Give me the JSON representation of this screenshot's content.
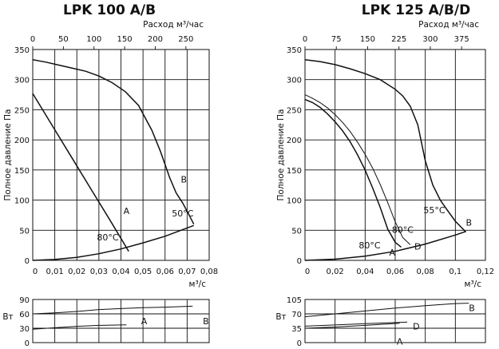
{
  "chart_data": [
    {
      "type": "line",
      "title": "LPK 100 A/B",
      "ylabel": "Полное давление Па",
      "xlabel": "м³/с",
      "x2label": "Расход м³/час",
      "xlim": [
        0,
        0.08
      ],
      "ylim": [
        0,
        350
      ],
      "x_ticks": [
        "0",
        "0,01",
        "0,02",
        "0,03",
        "0,04",
        "0,05",
        "0,06",
        "0,07",
        "0,08"
      ],
      "y_ticks": [
        "0",
        "50",
        "100",
        "150",
        "200",
        "250",
        "300",
        "350"
      ],
      "x2_ticks": [
        "0",
        "50",
        "100",
        "150",
        "200",
        "250"
      ],
      "x2_scale": 3600,
      "grid": true,
      "series": [
        {
          "name": "A",
          "x": [
            0,
            0.0088,
            0.0178,
            0.0268,
            0.0358,
            0.0435
          ],
          "y": [
            277,
            224,
            170,
            116,
            62,
            15
          ]
        },
        {
          "name": "B",
          "x": [
            0,
            0.006,
            0.012,
            0.018,
            0.024,
            0.03,
            0.036,
            0.042,
            0.048,
            0.054,
            0.058,
            0.062,
            0.065,
            0.068,
            0.0705,
            0.073
          ],
          "y": [
            333,
            329,
            324,
            319,
            314,
            306,
            295,
            280,
            257,
            216,
            180,
            138,
            112,
            95,
            78,
            60
          ]
        },
        {
          "name": "system",
          "x": [
            0,
            0.01,
            0.02,
            0.03,
            0.04,
            0.05,
            0.06,
            0.073
          ],
          "y": [
            0,
            1.5,
            5,
            11,
            19,
            29,
            40,
            58
          ]
        }
      ],
      "annotations": [
        {
          "text": "A",
          "x": 0.0425,
          "y": 77
        },
        {
          "text": "B",
          "x": 0.0685,
          "y": 129
        },
        {
          "text": "80°C",
          "x": 0.034,
          "y": 33
        },
        {
          "text": "50°C",
          "x": 0.068,
          "y": 73
        }
      ],
      "power_panel": {
        "ylabel": "Вт",
        "ylim": [
          0,
          90
        ],
        "y_ticks": [
          "0",
          "30",
          "60",
          "90"
        ],
        "series": [
          {
            "name": "A",
            "x": [
              0,
              0.01,
              0.02,
              0.03,
              0.0425
            ],
            "y": [
              28,
              31,
              34,
              36,
              37
            ]
          },
          {
            "name": "B",
            "x": [
              0,
              0.01,
              0.02,
              0.03,
              0.04,
              0.05,
              0.06,
              0.0725
            ],
            "y": [
              60,
              62,
              65,
              69,
              71,
              73,
              74,
              76
            ]
          }
        ],
        "annotations": [
          {
            "text": "A",
            "x": 0.0505,
            "y": 45
          },
          {
            "text": "B",
            "x": 0.0785,
            "y": 45
          }
        ]
      }
    },
    {
      "type": "line",
      "title": "LPK 125 A/B/D",
      "ylabel": "Полное давление Па",
      "xlabel": "м³/с",
      "x2label": "Расход м³/час",
      "xlim": [
        0,
        0.12
      ],
      "ylim": [
        0,
        350
      ],
      "x_ticks": [
        "0",
        "0,02",
        "0,04",
        "0,06",
        "0,08",
        "0,1",
        "0,12"
      ],
      "y_ticks": [
        "0",
        "50",
        "100",
        "150",
        "200",
        "250",
        "300",
        "350"
      ],
      "x2_ticks": [
        "0",
        "75",
        "150",
        "225",
        "300",
        "375"
      ],
      "x2_scale": 3600,
      "grid": true,
      "series": [
        {
          "name": "A",
          "x": [
            0,
            0.005,
            0.01,
            0.015,
            0.02,
            0.025,
            0.03,
            0.035,
            0.04,
            0.045,
            0.05,
            0.055,
            0.06,
            0.064
          ],
          "y": [
            267,
            262,
            254,
            243,
            230,
            215,
            197,
            175,
            150,
            120,
            88,
            52,
            30,
            22
          ]
        },
        {
          "name": "D",
          "x": [
            0,
            0.005,
            0.01,
            0.015,
            0.02,
            0.025,
            0.03,
            0.035,
            0.04,
            0.045,
            0.05,
            0.055,
            0.06,
            0.065,
            0.07
          ],
          "y": [
            275,
            269,
            262,
            253,
            242,
            229,
            214,
            196,
            176,
            153,
            126,
            96,
            64,
            38,
            26
          ]
        },
        {
          "name": "B",
          "x": [
            0,
            0.01,
            0.02,
            0.03,
            0.04,
            0.05,
            0.06,
            0.065,
            0.07,
            0.075,
            0.08,
            0.085,
            0.09,
            0.095,
            0.1,
            0.107
          ],
          "y": [
            333,
            330,
            325,
            318,
            310,
            300,
            284,
            273,
            256,
            225,
            165,
            125,
            100,
            82,
            65,
            47
          ]
        },
        {
          "name": "system",
          "x": [
            0,
            0.02,
            0.04,
            0.06,
            0.08,
            0.1,
            0.107
          ],
          "y": [
            0,
            2,
            7,
            15,
            27,
            42,
            48
          ]
        }
      ],
      "annotations": [
        {
          "text": "A",
          "x": 0.058,
          "y": 8
        },
        {
          "text": "D",
          "x": 0.075,
          "y": 18
        },
        {
          "text": "B",
          "x": 0.109,
          "y": 58
        },
        {
          "text": "80°C",
          "x": 0.043,
          "y": 20
        },
        {
          "text": "80°C",
          "x": 0.065,
          "y": 46
        },
        {
          "text": "55°C",
          "x": 0.086,
          "y": 78
        }
      ],
      "power_panel": {
        "ylabel": "Вт",
        "ylim": [
          0,
          105
        ],
        "y_ticks": [
          "0",
          "35",
          "70",
          "105"
        ],
        "series": [
          {
            "name": "A",
            "x": [
              0,
              0.02,
              0.04,
              0.063
            ],
            "y": [
              35,
              38,
              42,
              47
            ]
          },
          {
            "name": "D",
            "x": [
              0,
              0.02,
              0.04,
              0.068
            ],
            "y": [
              40,
              43,
              46,
              50
            ]
          },
          {
            "name": "B",
            "x": [
              0,
              0.02,
              0.04,
              0.06,
              0.08,
              0.1,
              0.109
            ],
            "y": [
              63,
              70,
              77,
              84,
              90,
              95,
              96
            ]
          }
        ],
        "annotations": [
          {
            "text": "A",
            "x": 0.063,
            "y": 3
          },
          {
            "text": "D",
            "x": 0.074,
            "y": 40
          },
          {
            "text": "B",
            "x": 0.111,
            "y": 85
          }
        ]
      }
    }
  ]
}
